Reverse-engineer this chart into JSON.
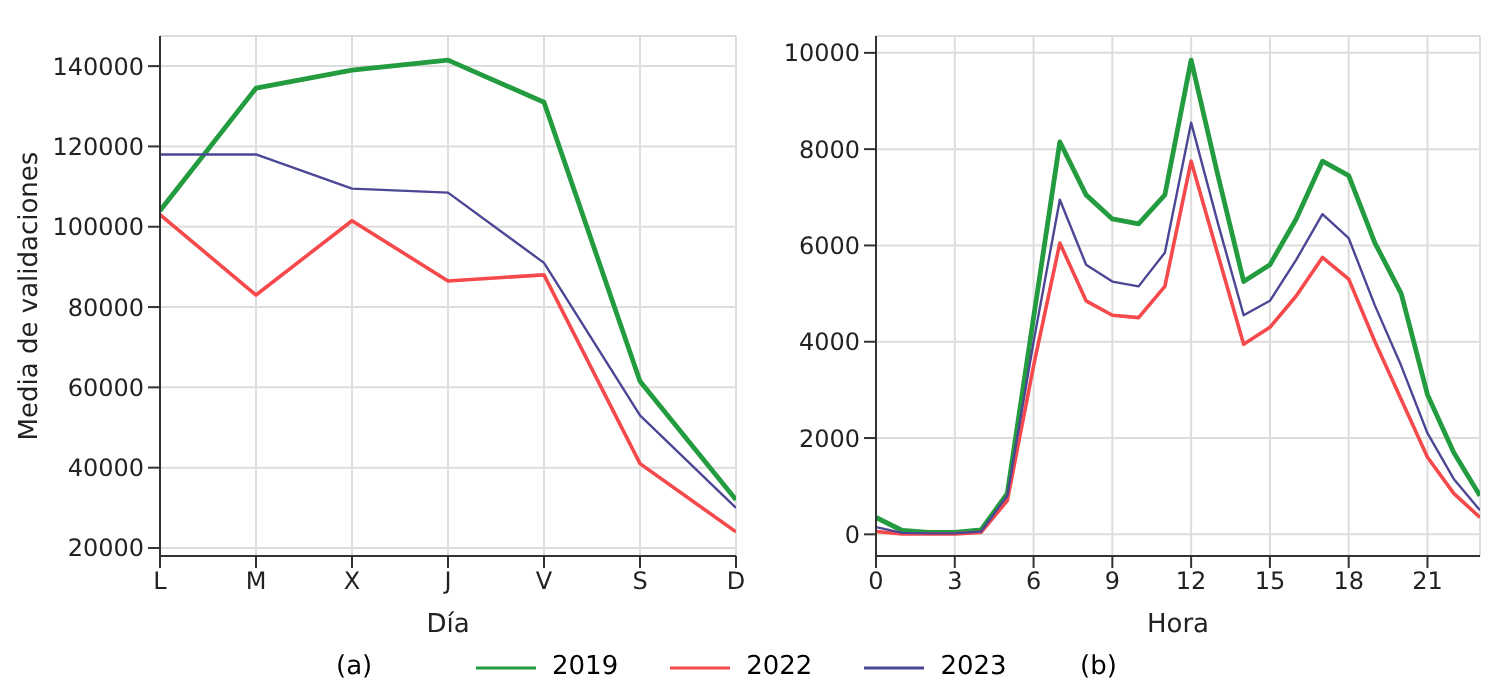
{
  "chart_data": [
    {
      "type": "line",
      "xlabel": "Día",
      "ylabel": "Media de validaciones",
      "categories": [
        "L",
        "M",
        "X",
        "J",
        "V",
        "S",
        "D"
      ],
      "series": [
        {
          "name": "2019",
          "color": "#239b3f",
          "values": [
            104000,
            134500,
            139000,
            141500,
            131000,
            61500,
            32000
          ]
        },
        {
          "name": "2022",
          "color": "#f5494b",
          "values": [
            103000,
            83000,
            101500,
            86500,
            88000,
            41000,
            24000
          ]
        },
        {
          "name": "2023",
          "color": "#4c4794",
          "values": [
            118000,
            118000,
            109500,
            108500,
            91000,
            53000,
            30000
          ]
        }
      ],
      "ylim": [
        18000,
        147500
      ],
      "yticks": [
        20000,
        40000,
        60000,
        80000,
        100000,
        120000,
        140000
      ],
      "grid": true,
      "legend": "bottom",
      "annotations": [
        "(a)"
      ]
    },
    {
      "type": "line",
      "xlabel": "Hora",
      "x": [
        0,
        1,
        2,
        3,
        4,
        5,
        6,
        7,
        8,
        9,
        10,
        11,
        12,
        13,
        14,
        15,
        16,
        17,
        18,
        19,
        20,
        21,
        22,
        23
      ],
      "series": [
        {
          "name": "2019",
          "color": "#239b3f",
          "values": [
            350,
            80,
            40,
            40,
            90,
            850,
            4500,
            8150,
            7050,
            6550,
            6450,
            7050,
            9850,
            7500,
            5250,
            5600,
            6550,
            7750,
            7450,
            6050,
            5000,
            2900,
            1700,
            800
          ]
        },
        {
          "name": "2022",
          "color": "#f5494b",
          "values": [
            60,
            10,
            10,
            10,
            40,
            700,
            3500,
            6050,
            4850,
            4550,
            4500,
            5150,
            7750,
            5850,
            3950,
            4300,
            4950,
            5750,
            5300,
            4000,
            2800,
            1600,
            850,
            350
          ]
        },
        {
          "name": "2023",
          "color": "#4c4794",
          "values": [
            150,
            30,
            20,
            20,
            60,
            800,
            4000,
            6950,
            5600,
            5250,
            5150,
            5850,
            8550,
            6500,
            4550,
            4850,
            5700,
            6650,
            6150,
            4750,
            3500,
            2100,
            1150,
            500
          ]
        }
      ],
      "xlim": [
        0,
        23
      ],
      "xticks": [
        0,
        3,
        6,
        9,
        12,
        15,
        18,
        21
      ],
      "ylim": [
        -450,
        10350
      ],
      "yticks": [
        0,
        2000,
        4000,
        6000,
        8000,
        10000
      ],
      "grid": true,
      "annotations": [
        "(b)"
      ]
    }
  ]
}
